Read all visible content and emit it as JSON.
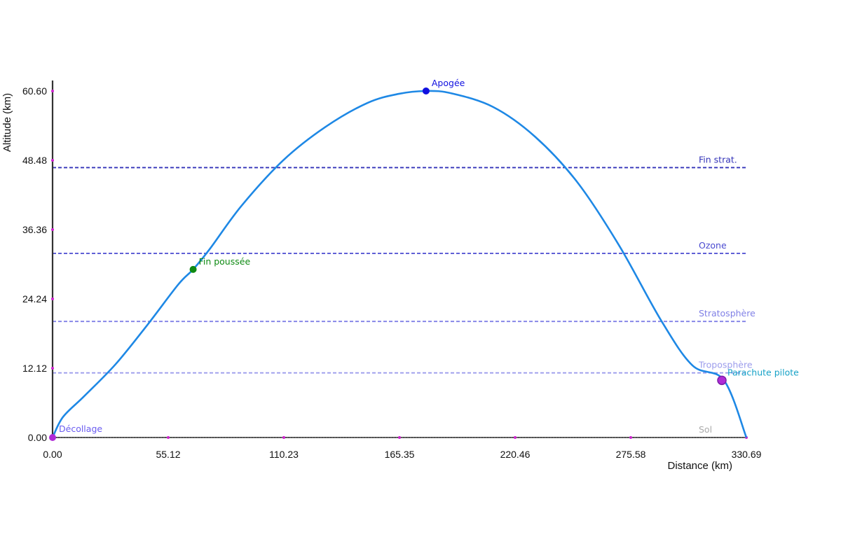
{
  "chart_data": {
    "type": "line",
    "xlabel": "Distance (km)",
    "ylabel": "Altitude (km)",
    "xlim": [
      0,
      330.69
    ],
    "ylim": [
      0,
      60.6
    ],
    "x_ticks": [
      "0.00",
      "55.12",
      "110.23",
      "165.35",
      "220.46",
      "275.58",
      "330.69"
    ],
    "y_ticks": [
      "0.00",
      "12.12",
      "24.24",
      "36.36",
      "48.48",
      "60.60"
    ],
    "x_tick_values": [
      0,
      55.12,
      110.23,
      165.35,
      220.46,
      275.58,
      330.69
    ],
    "y_tick_values": [
      0,
      12.12,
      24.24,
      36.36,
      48.48,
      60.6
    ],
    "grid": false,
    "trajectory": {
      "color": "#1e88e5",
      "x": [
        0,
        5,
        15,
        30,
        45,
        60,
        67,
        75,
        90,
        110,
        130,
        150,
        165,
        178,
        190,
        210,
        230,
        250,
        270,
        290,
        305,
        320,
        330.69
      ],
      "y": [
        0,
        3.6,
        7.2,
        12.8,
        19.6,
        26.8,
        29.4,
        33.0,
        40.5,
        48.5,
        54.3,
        58.5,
        60.1,
        60.6,
        60.2,
        57.8,
        52.6,
        44.7,
        33.6,
        20.5,
        12.6,
        10.0,
        0
      ]
    },
    "reference_lines": [
      {
        "label": "Sol",
        "y": 0,
        "color": "#555555",
        "text_color": "#aaaaaa"
      },
      {
        "label": "Troposphère",
        "y": 11.3,
        "color": "#9c9cec",
        "text_color": "#9c9cec"
      },
      {
        "label": "Stratosphère",
        "y": 20.3,
        "color": "#8080e6",
        "text_color": "#8080e6"
      },
      {
        "label": "Ozone",
        "y": 32.2,
        "color": "#4a4ad0",
        "text_color": "#4a4ad0"
      },
      {
        "label": "Fin strat.",
        "y": 47.2,
        "color": "#3333b8",
        "text_color": "#3333b8"
      }
    ],
    "events": [
      {
        "label": "Décollage",
        "x": 0,
        "y": 0,
        "color": "#b02bd6",
        "text_color": "#6a5cf0"
      },
      {
        "label": "Fin poussée",
        "x": 67,
        "y": 29.4,
        "color": "#0e8a12",
        "text_color": "#0e8a12"
      },
      {
        "label": "Apogée",
        "x": 178,
        "y": 60.6,
        "color": "#1010e0",
        "text_color": "#1010e0"
      },
      {
        "label": "Parachute pilote",
        "x": 319,
        "y": 10.0,
        "color": "#b02bd6",
        "text_color": "#17a2c7"
      }
    ],
    "axis_color": "#333333",
    "tick_color": "#cc22cc"
  }
}
